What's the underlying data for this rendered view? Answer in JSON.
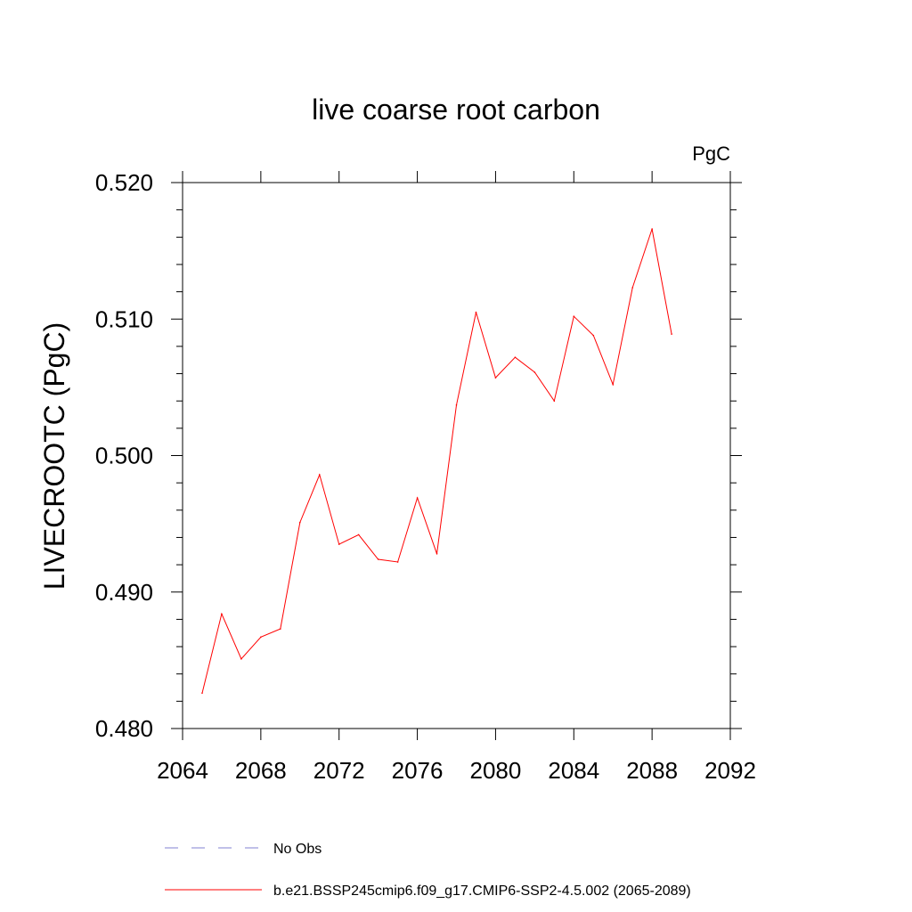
{
  "chart_data": {
    "type": "line",
    "title": "live coarse root carbon",
    "units_label": "PgC",
    "ylabel": "LIVECROOTC  (PgC)",
    "xlabel": "",
    "xlim": [
      2064,
      2092
    ],
    "ylim": [
      0.48,
      0.52
    ],
    "xticks": [
      2064,
      2068,
      2072,
      2076,
      2080,
      2084,
      2088,
      2092
    ],
    "xtick_labels": [
      "2064",
      "2068",
      "2072",
      "2076",
      "2080",
      "2084",
      "2088",
      "2092"
    ],
    "yticks": [
      0.48,
      0.49,
      0.5,
      0.51,
      0.52
    ],
    "ytick_labels": [
      "0.480",
      "0.490",
      "0.500",
      "0.510",
      "0.520"
    ],
    "grid": false,
    "legend_position": "bottom",
    "series": [
      {
        "name": "b.e21.BSSP245cmip6.f09_g17.CMIP6-SSP2-4.5.002 (2065-2089)",
        "color": "#ff0000",
        "style": "solid",
        "x": [
          2065,
          2066,
          2067,
          2068,
          2069,
          2070,
          2071,
          2072,
          2073,
          2074,
          2075,
          2076,
          2077,
          2078,
          2079,
          2080,
          2081,
          2082,
          2083,
          2084,
          2085,
          2086,
          2087,
          2088,
          2089
        ],
        "values": [
          0.4826,
          0.4884,
          0.4851,
          0.4867,
          0.4873,
          0.4951,
          0.4986,
          0.4935,
          0.4942,
          0.4924,
          0.4922,
          0.4969,
          0.4928,
          0.5037,
          0.5105,
          0.5057,
          0.5072,
          0.5061,
          0.504,
          0.5102,
          0.5088,
          0.5052,
          0.5123,
          0.5166,
          0.5089
        ]
      }
    ],
    "legend": [
      {
        "label": "No Obs",
        "color": "#8080d0",
        "style": "dashed"
      },
      {
        "label": "b.e21.BSSP245cmip6.f09_g17.CMIP6-SSP2-4.5.002 (2065-2089)",
        "color": "#ff0000",
        "style": "solid"
      }
    ]
  }
}
